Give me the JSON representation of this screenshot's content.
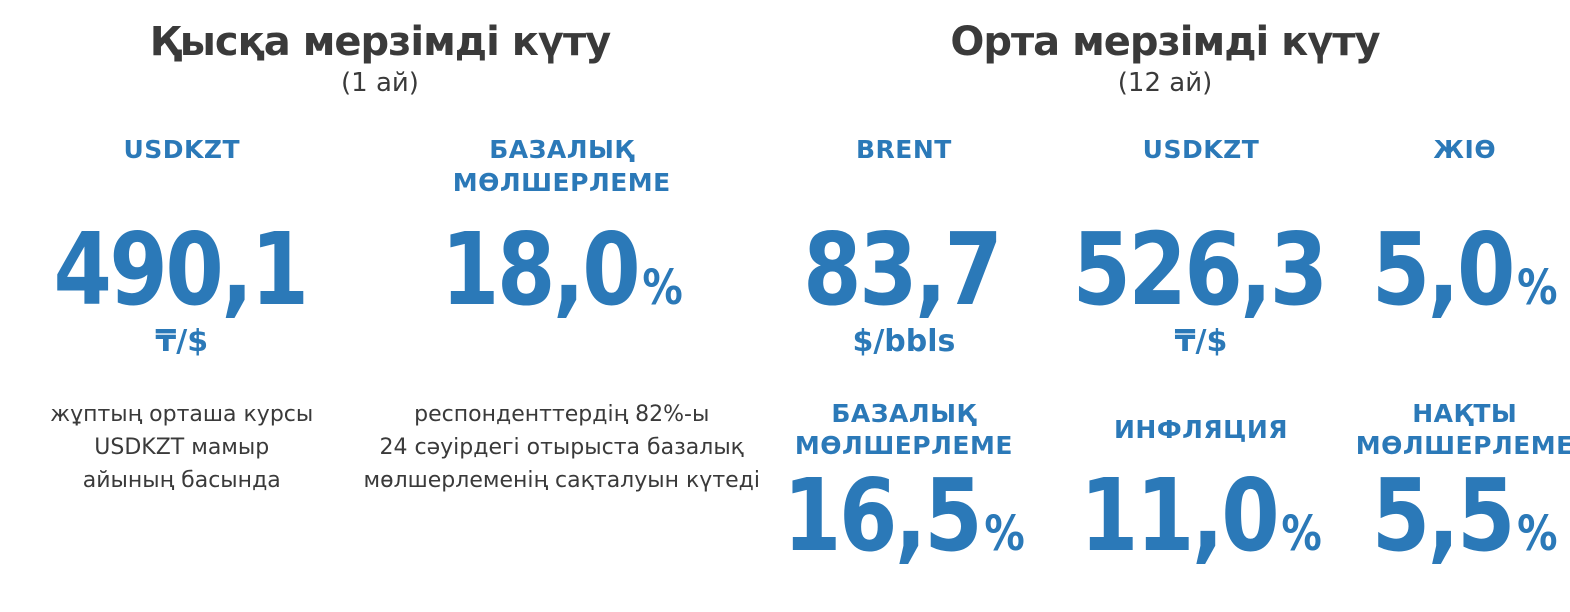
{
  "colors": {
    "accent_blue": "#2b79b8",
    "text_dark": "#3a3a3a",
    "background": "#ffffff"
  },
  "short_term": {
    "title": "Қысқа мерзімді күту",
    "subtitle": "(1 ай)",
    "col1": {
      "label": "USDKZT",
      "value": "490,1",
      "suffix": "",
      "unit": "₸/$",
      "desc_lines": [
        "жұптың орташа курсы",
        "USDKZT мамыр",
        "айының басында"
      ]
    },
    "col2": {
      "label_lines": [
        "БАЗАЛЫҚ",
        "МӨЛШЕРЛЕМЕ"
      ],
      "value": "18,0",
      "suffix": "%",
      "unit": "",
      "desc_lines": [
        "респонденттердің 82%-ы",
        "24 сәуірдегі отырыста базалық",
        "мөлшерлеменің сақталуын күтеді"
      ]
    }
  },
  "medium_term": {
    "title": "Орта мерзімді күту",
    "subtitle": "(12 ай)",
    "cols": [
      {
        "label_lines": [
          "BRENT"
        ],
        "value": "83,7",
        "suffix": "",
        "unit": "$/bbls",
        "label2_lines": [
          "БАЗАЛЫҚ",
          "МӨЛШЕРЛЕМЕ"
        ],
        "value2": "16,5",
        "suffix2": "%"
      },
      {
        "label_lines": [
          "USDKZT"
        ],
        "value": "526,3",
        "suffix": "",
        "unit": "₸/$",
        "label2_lines": [
          "ИНФЛЯЦИЯ"
        ],
        "value2": "11,0",
        "suffix2": "%"
      },
      {
        "label_lines": [
          "ЖІӨ"
        ],
        "value": "5,0",
        "suffix": "%",
        "unit": "",
        "label2_lines": [
          "НАҚТЫ",
          "МӨЛШЕРЛЕМЕ"
        ],
        "value2": "5,5",
        "suffix2": "%"
      }
    ]
  },
  "chart_data": [
    {
      "type": "table",
      "title": "Қысқа мерзімді күту (1 ай)",
      "rows": [
        {
          "indicator": "USDKZT",
          "value": 490.1,
          "unit": "₸/$",
          "note": "жұптың орташа курсы USDKZT мамыр айының басында"
        },
        {
          "indicator": "БАЗАЛЫҚ МӨЛШЕРЛЕМЕ",
          "value": 18.0,
          "unit": "%",
          "note": "респонденттердің 82%-ы 24 сәуірдегі отырыста базалық мөлшерлеменің сақталуын күтеді"
        }
      ]
    },
    {
      "type": "table",
      "title": "Орта мерзімді күту (12 ай)",
      "rows": [
        {
          "indicator": "BRENT",
          "value": 83.7,
          "unit": "$/bbls"
        },
        {
          "indicator": "USDKZT",
          "value": 526.3,
          "unit": "₸/$"
        },
        {
          "indicator": "ЖІӨ",
          "value": 5.0,
          "unit": "%"
        },
        {
          "indicator": "БАЗАЛЫҚ МӨЛШЕРЛЕМЕ",
          "value": 16.5,
          "unit": "%"
        },
        {
          "indicator": "ИНФЛЯЦИЯ",
          "value": 11.0,
          "unit": "%"
        },
        {
          "indicator": "НАҚТЫ МӨЛШЕРЛЕМЕ",
          "value": 5.5,
          "unit": "%"
        }
      ]
    }
  ]
}
